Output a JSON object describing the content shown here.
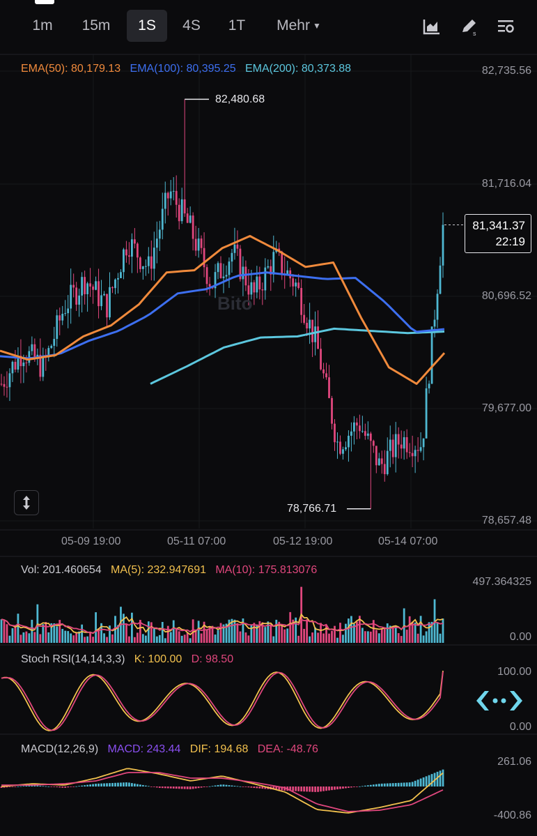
{
  "toolbar": {
    "intervals": [
      "1m",
      "15m",
      "1S",
      "4S",
      "1T"
    ],
    "active_interval": "1S",
    "more_label": "Mehr",
    "icons": [
      "chart-type-icon",
      "drawing-tool-icon",
      "indicator-settings-icon"
    ]
  },
  "watermark": "Bito",
  "main_legend": {
    "ema50": "EMA(50): 80,179.13",
    "ema100": "EMA(100): 80,395.25",
    "ema200": "EMA(200): 80,373.88"
  },
  "price_axis": [
    "82,735.56",
    "81,716.04",
    "80,696.52",
    "79,677.00",
    "78,657.48"
  ],
  "date_axis": [
    "05-09 19:00",
    "05-11 07:00",
    "05-12 19:00",
    "05-14 07:00"
  ],
  "high_label": "82,480.68",
  "low_label": "78,766.71",
  "last_price": {
    "price": "81,341.37",
    "countdown": "22:19"
  },
  "volume_panel": {
    "legend": {
      "vol": "Vol: 201.460654",
      "ma5": "MA(5): 232.947691",
      "ma10": "MA(10): 175.813076"
    },
    "axis": [
      "497.364325",
      "0.00"
    ]
  },
  "stoch_panel": {
    "legend": {
      "name": "Stoch RSI(14,14,3,3)",
      "k": "K: 100.00",
      "d": "D: 98.50"
    },
    "axis": [
      "100.00",
      "0.00"
    ]
  },
  "macd_panel": {
    "legend": {
      "name": "MACD(12,26,9)",
      "macd": "MACD: 243.44",
      "dif": "DIF: 194.68",
      "dea": "DEA: -48.76"
    },
    "axis": [
      "261.06",
      "-400.86"
    ]
  },
  "colors": {
    "up": "#4fb8d2",
    "down": "#e0477d",
    "ema50": "#f08a3c",
    "ema100": "#3d6ff0",
    "ema200": "#5cc7de",
    "macd": "#8a4ff0",
    "dif": "#f2c14e",
    "dea": "#e0477d",
    "k": "#f2c14e",
    "d": "#e0477d"
  },
  "chart_data": {
    "type": "candlestick",
    "interval": "1S",
    "y_range": [
      78657.48,
      82735.56
    ],
    "high": 82480.68,
    "low": 78766.71,
    "last": 81341.37,
    "series_keypoints": {
      "close": [
        79900,
        80200,
        80050,
        80600,
        80850,
        80600,
        81200,
        80950,
        81650,
        81300,
        80800,
        81100,
        80700,
        81050,
        80800,
        80250,
        79350,
        79550,
        79150,
        79400,
        79350,
        81341.37
      ],
      "ema50": [
        80200,
        80120,
        80160,
        80330,
        80430,
        80620,
        80910,
        80930,
        81130,
        81240,
        81110,
        80960,
        81000,
        80500,
        80050,
        79900,
        80179.13
      ],
      "ema100": [
        80150,
        80130,
        80170,
        80290,
        80380,
        80520,
        80720,
        80760,
        80880,
        80910,
        80880,
        80850,
        80860,
        80640,
        80370,
        80395.25
      ],
      "ema200": [
        79900,
        80060,
        80230,
        80320,
        80330,
        80400,
        80380,
        80360,
        80373.88
      ]
    }
  }
}
